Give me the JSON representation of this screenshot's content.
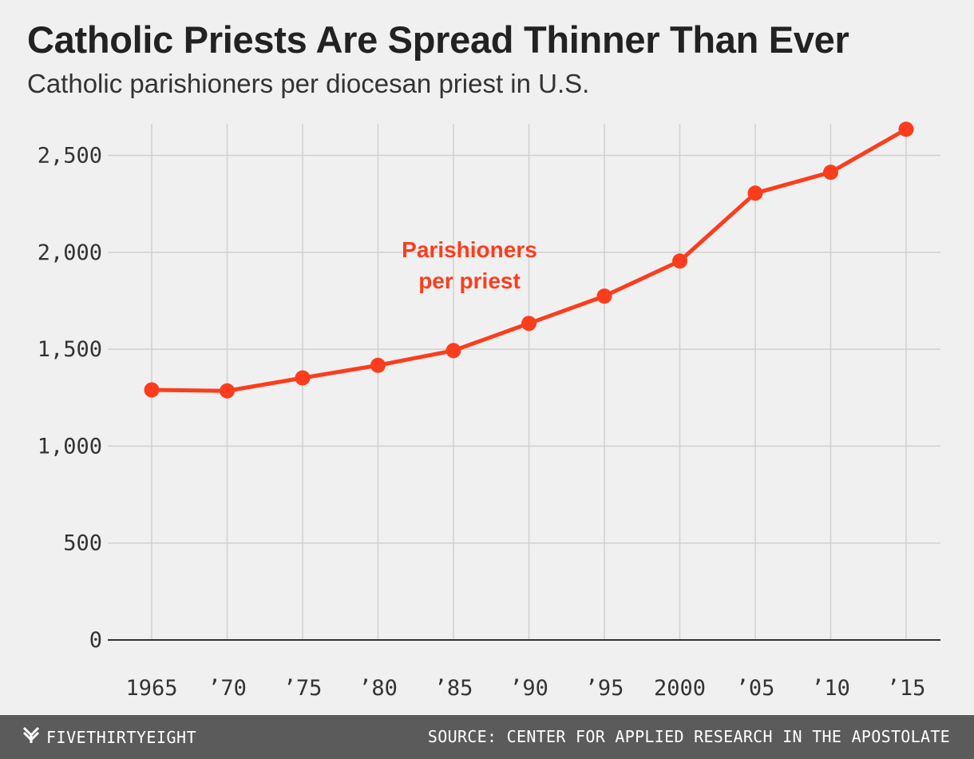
{
  "chart_data": {
    "type": "line",
    "title": "Catholic Priests Are Spread Thinner Than Ever",
    "subtitle": "Catholic parishioners per diocesan priest in U.S.",
    "x": [
      1965,
      1970,
      1975,
      1980,
      1985,
      1990,
      1995,
      2000,
      2005,
      2010,
      2015
    ],
    "x_tick_labels": [
      "1965",
      "’70",
      "’75",
      "’80",
      "’85",
      "’90",
      "’95",
      "2000",
      "’05",
      "’10",
      "’15"
    ],
    "y_ticks": [
      0,
      500,
      1000,
      1500,
      2000,
      2500
    ],
    "y_tick_labels": [
      "0",
      "500",
      "1,000",
      "1,500",
      "2,000",
      "2,500"
    ],
    "ylim": [
      0,
      2650
    ],
    "grid": true,
    "series": [
      {
        "values": [
          1290,
          1285,
          1352,
          1417,
          1493,
          1633,
          1774,
          1955,
          2305,
          2413,
          2635
        ],
        "color": "#fc3d1d"
      }
    ],
    "annotation": {
      "lines": [
        "Parishioners",
        "per priest"
      ],
      "color": "#fc3d1d"
    }
  },
  "footer": {
    "brand": "FIVETHIRTYEIGHT",
    "brand_icon": "fivethirtyeight-logo-icon",
    "source": "SOURCE: CENTER FOR APPLIED RESEARCH IN THE APOSTOLATE",
    "background": "#5b5b5b"
  }
}
